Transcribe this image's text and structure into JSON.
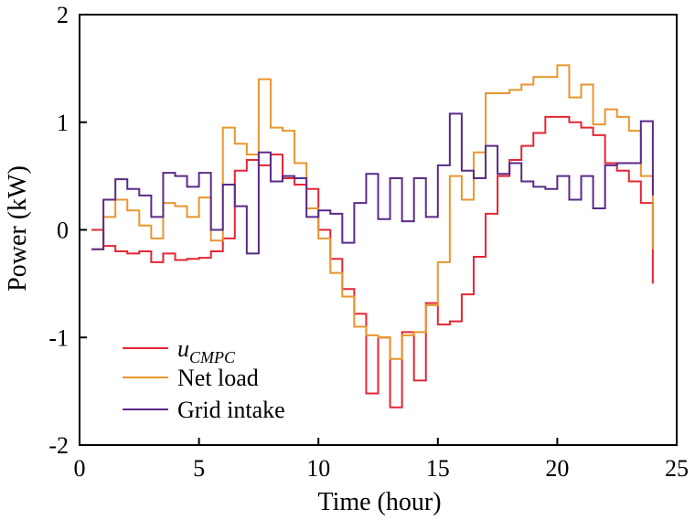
{
  "chart_data": {
    "type": "line",
    "step": true,
    "xlabel": "Time (hour)",
    "ylabel": "Power (kW)",
    "xlim": [
      0,
      25
    ],
    "ylim": [
      -2,
      2
    ],
    "xticks": [
      0,
      5,
      10,
      15,
      20,
      25
    ],
    "yticks": [
      -2,
      -1,
      0,
      1,
      2
    ],
    "xtick_labels": [
      "0",
      "5",
      "10",
      "15",
      "20",
      "25"
    ],
    "ytick_labels": [
      "-2",
      "-1",
      "0",
      "1",
      "2"
    ],
    "grid": false,
    "legend_position": "bottom-left",
    "legend": {
      "ucmpc_main": "u",
      "ucmpc_sub": "CMPC"
    },
    "x": [
      0.5,
      1.0,
      1.5,
      2.0,
      2.5,
      3.0,
      3.5,
      4.0,
      4.5,
      5.0,
      5.5,
      6.0,
      6.5,
      7.0,
      7.5,
      8.0,
      8.5,
      9.0,
      9.5,
      10.0,
      10.5,
      11.0,
      11.5,
      12.0,
      12.5,
      13.0,
      13.5,
      14.0,
      14.5,
      15.0,
      15.5,
      16.0,
      16.5,
      17.0,
      17.5,
      18.0,
      18.5,
      19.0,
      19.5,
      20.0,
      20.5,
      21.0,
      21.5,
      22.0,
      22.5,
      23.0,
      23.5,
      24.0
    ],
    "series": [
      {
        "name": "u_CMPC",
        "color": "#e32636",
        "values": [
          0.0,
          -0.15,
          -0.2,
          -0.22,
          -0.2,
          -0.3,
          -0.22,
          -0.28,
          -0.27,
          -0.26,
          -0.2,
          -0.08,
          0.55,
          0.65,
          0.6,
          0.7,
          0.48,
          0.42,
          0.38,
          0.0,
          -0.27,
          -0.55,
          -0.78,
          -1.52,
          -1.0,
          -1.65,
          -0.95,
          -1.4,
          -0.68,
          -0.88,
          -0.85,
          -0.6,
          -0.25,
          0.15,
          0.5,
          0.65,
          0.78,
          0.9,
          1.05,
          1.05,
          1.0,
          0.95,
          0.88,
          0.62,
          0.55,
          0.45,
          0.25,
          -0.5
        ]
      },
      {
        "name": "Net load",
        "color": "#e8962e",
        "values": [
          -0.18,
          0.12,
          0.28,
          0.18,
          0.04,
          -0.08,
          0.25,
          0.22,
          0.12,
          0.3,
          -0.1,
          0.95,
          0.8,
          0.7,
          1.4,
          0.95,
          0.92,
          0.62,
          0.2,
          -0.08,
          -0.4,
          -0.62,
          -0.9,
          -0.98,
          -1.0,
          -1.2,
          -0.98,
          -0.95,
          -0.7,
          -0.3,
          0.5,
          0.28,
          0.72,
          1.27,
          1.27,
          1.3,
          1.35,
          1.42,
          1.42,
          1.53,
          1.23,
          1.35,
          0.98,
          1.12,
          1.05,
          0.92,
          0.5,
          -0.18
        ]
      },
      {
        "name": "Grid intake",
        "color": "#5b2a86",
        "values": [
          -0.18,
          0.28,
          0.47,
          0.38,
          0.32,
          0.12,
          0.53,
          0.5,
          0.4,
          0.53,
          0.0,
          0.42,
          0.22,
          -0.22,
          0.72,
          0.45,
          0.5,
          0.48,
          0.12,
          0.18,
          0.15,
          -0.12,
          0.25,
          0.52,
          0.1,
          0.48,
          0.08,
          0.48,
          0.12,
          0.6,
          1.08,
          0.55,
          0.48,
          0.78,
          0.52,
          0.62,
          0.45,
          0.4,
          0.38,
          0.5,
          0.28,
          0.5,
          0.2,
          0.6,
          0.62,
          0.62,
          1.01,
          0.32
        ]
      }
    ]
  }
}
